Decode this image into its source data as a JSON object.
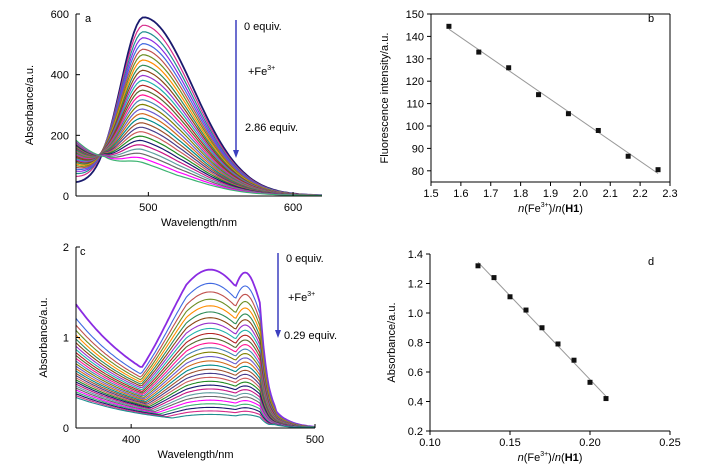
{
  "chart_data": [
    {
      "panel": "a",
      "type": "line",
      "xlabel": "Wavelength/nm",
      "ylabel": "Absorbance/a.u.",
      "xlim": [
        450,
        620
      ],
      "ylim": [
        0,
        600
      ],
      "xticks": [
        500,
        600
      ],
      "yticks": [
        0,
        200,
        400,
        600
      ],
      "grid": false,
      "legend": "none",
      "annotations": [
        "0 equiv.",
        "+Fe3+",
        "2.86 equiv."
      ],
      "arrow_color": "#3b3fbf",
      "series_count": 30,
      "peak_wavelength": 497,
      "peak_first": 580,
      "peak_last": 80,
      "value_at_450_first": 30,
      "value_at_450_last": 175
    },
    {
      "panel": "b",
      "type": "scatter",
      "xlabel": "n(Fe3+)/n(H1)",
      "ylabel": "Fluorescence intensity/a.u.",
      "xlim": [
        1.5,
        2.3
      ],
      "ylim": [
        75,
        150
      ],
      "xticks": [
        1.5,
        1.6,
        1.7,
        1.8,
        1.9,
        2.0,
        2.1,
        2.2,
        2.3
      ],
      "yticks": [
        80,
        90,
        100,
        110,
        120,
        130,
        140,
        150
      ],
      "grid": false,
      "legend": "none",
      "fit_line": true,
      "x": [
        1.56,
        1.66,
        1.76,
        1.86,
        1.96,
        2.06,
        2.16,
        2.26
      ],
      "y": [
        144.5,
        133,
        126,
        114,
        105.5,
        98,
        86.5,
        80.5
      ]
    },
    {
      "panel": "c",
      "type": "line",
      "xlabel": "Wavelength/nm",
      "ylabel": "Absorbance/a.u.",
      "xlim": [
        370,
        500
      ],
      "ylim": [
        0,
        2
      ],
      "xticks": [
        400,
        500
      ],
      "yticks": [
        0,
        1,
        2
      ],
      "grid": false,
      "legend": "none",
      "annotations": [
        "0 equiv.",
        "+Fe3+",
        "0.29 equiv."
      ],
      "arrow_color": "#3b3fbf",
      "series_count": 30,
      "peak_wavelengths": [
        443,
        462
      ],
      "peak_first": 1.75,
      "peak_last": 0.15
    },
    {
      "panel": "d",
      "type": "scatter",
      "xlabel": "n(Fe3+)/n(H1)",
      "ylabel": "Absorbance/a.u.",
      "xlim": [
        0.1,
        0.25
      ],
      "ylim": [
        0.2,
        1.4
      ],
      "xticks": [
        0.1,
        0.15,
        0.2,
        0.25
      ],
      "yticks": [
        0.2,
        0.4,
        0.6,
        0.8,
        1.0,
        1.2,
        1.4
      ],
      "grid": false,
      "legend": "none",
      "fit_line": true,
      "x": [
        0.13,
        0.14,
        0.15,
        0.16,
        0.17,
        0.18,
        0.19,
        0.2,
        0.21
      ],
      "y": [
        1.32,
        1.24,
        1.11,
        1.02,
        0.9,
        0.79,
        0.68,
        0.53,
        0.42
      ]
    }
  ],
  "palette": [
    "#1a1a6e",
    "#d62a8a",
    "#1f8f8f",
    "#8a2be2",
    "#4169e1",
    "#c0504d",
    "#6b8e23",
    "#ff8c00",
    "#2e8b57",
    "#8b4513",
    "#9932cc",
    "#20b2aa",
    "#b22222",
    "#556b2f",
    "#ff1493",
    "#4682b4",
    "#808000",
    "#6a5acd",
    "#d2691e",
    "#008b8b",
    "#a0522d",
    "#483d8b",
    "#cd5c5c",
    "#228b22",
    "#191970",
    "#c71585",
    "#5f9ea0",
    "#696969",
    "#ff00ff",
    "#3cb371"
  ]
}
